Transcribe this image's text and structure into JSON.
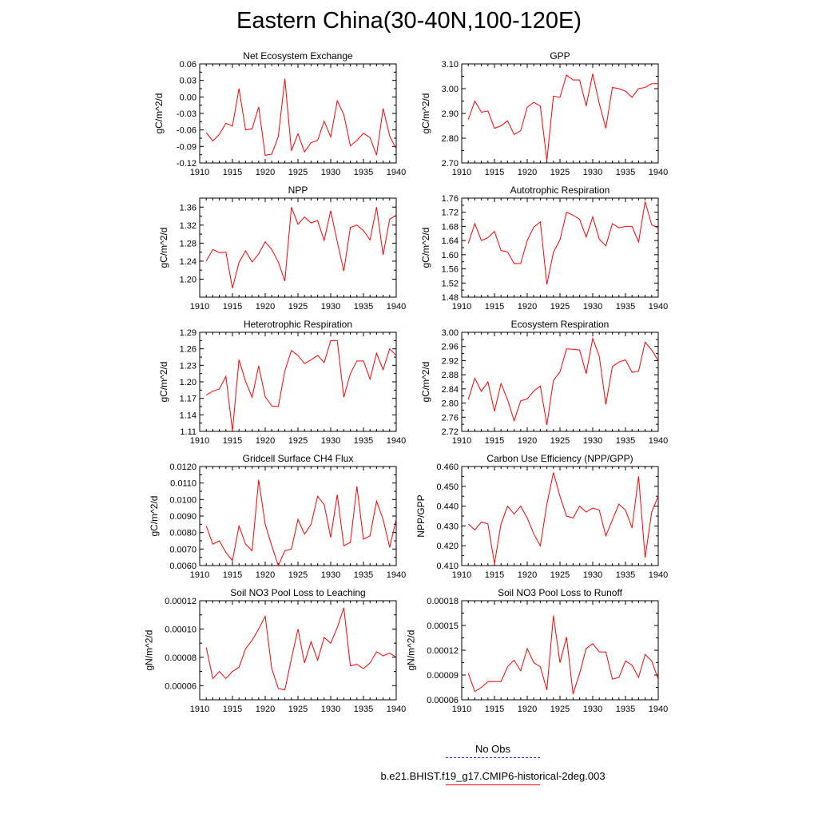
{
  "figure": {
    "title": "Eastern China(30-40N,100-120E)"
  },
  "legend": {
    "entries": [
      {
        "label": "No Obs",
        "color": "#3333cc",
        "style": "dashed"
      },
      {
        "label": "b.e21.BHIST.f19_g17.CMIP6-historical-2deg.003",
        "color": "#ff0000",
        "style": "solid"
      }
    ]
  },
  "chart_data": [
    {
      "type": "line",
      "title": "Net Ecosystem Exchange",
      "ylabel": "gC/m^2/d",
      "xlabel": "",
      "xlim": [
        1910,
        1940
      ],
      "ylim": [
        -0.12,
        0.06
      ],
      "xticks": [
        "1910",
        "1915",
        "1920",
        "1925",
        "1930",
        "1935",
        "1940"
      ],
      "yticks": [
        "-0.12",
        "-0.09",
        "-0.06",
        "-0.03",
        "0.00",
        "0.03",
        "0.06"
      ],
      "x": [
        1911,
        1912,
        1913,
        1914,
        1915,
        1916,
        1917,
        1918,
        1919,
        1920,
        1921,
        1922,
        1923,
        1924,
        1925,
        1926,
        1927,
        1928,
        1929,
        1930,
        1931,
        1932,
        1933,
        1934,
        1935,
        1936,
        1937,
        1938,
        1939,
        1940
      ],
      "series": [
        {
          "color": "#ff0000",
          "values": [
            -0.065,
            -0.08,
            -0.068,
            -0.048,
            -0.053,
            0.015,
            -0.06,
            -0.058,
            -0.018,
            -0.106,
            -0.104,
            -0.072,
            0.033,
            -0.098,
            -0.067,
            -0.1,
            -0.083,
            -0.079,
            -0.044,
            -0.073,
            -0.007,
            -0.032,
            -0.089,
            -0.079,
            -0.066,
            -0.074,
            -0.106,
            -0.021,
            -0.071,
            -0.094
          ]
        }
      ]
    },
    {
      "type": "line",
      "title": "GPP",
      "ylabel": "gC/m^2/d",
      "xlabel": "",
      "xlim": [
        1910,
        1940
      ],
      "ylim": [
        2.7,
        3.1
      ],
      "xticks": [
        "1910",
        "1915",
        "1920",
        "1925",
        "1930",
        "1935",
        "1940"
      ],
      "yticks": [
        "2.70",
        "2.80",
        "2.90",
        "3.00",
        "3.10"
      ],
      "x": [
        1911,
        1912,
        1913,
        1914,
        1915,
        1916,
        1917,
        1918,
        1919,
        1920,
        1921,
        1922,
        1923,
        1924,
        1925,
        1926,
        1927,
        1928,
        1929,
        1930,
        1931,
        1932,
        1933,
        1934,
        1935,
        1936,
        1937,
        1938,
        1939,
        1940
      ],
      "series": [
        {
          "color": "#ff0000",
          "values": [
            2.875,
            2.95,
            2.905,
            2.91,
            2.84,
            2.85,
            2.87,
            2.815,
            2.83,
            2.925,
            2.945,
            2.93,
            2.71,
            2.97,
            2.965,
            3.055,
            3.035,
            3.035,
            2.93,
            3.06,
            2.94,
            2.84,
            3.005,
            3.0,
            2.99,
            2.965,
            3.0,
            3.005,
            3.02,
            3.02
          ]
        }
      ]
    },
    {
      "type": "line",
      "title": "NPP",
      "ylabel": "gC/m^2/d",
      "xlabel": "",
      "xlim": [
        1910,
        1940
      ],
      "ylim": [
        1.16,
        1.38
      ],
      "xticks": [
        "1910",
        "1915",
        "1920",
        "1925",
        "1930",
        "1935",
        "1940"
      ],
      "yticks": [
        "1.20",
        "1.24",
        "1.28",
        "1.32",
        "1.36"
      ],
      "x": [
        1911,
        1912,
        1913,
        1914,
        1915,
        1916,
        1917,
        1918,
        1919,
        1920,
        1921,
        1922,
        1923,
        1924,
        1925,
        1926,
        1927,
        1928,
        1929,
        1930,
        1931,
        1932,
        1933,
        1934,
        1935,
        1936,
        1937,
        1938,
        1939,
        1940
      ],
      "series": [
        {
          "color": "#ff0000",
          "values": [
            1.24,
            1.266,
            1.259,
            1.26,
            1.18,
            1.237,
            1.263,
            1.238,
            1.256,
            1.283,
            1.266,
            1.238,
            1.196,
            1.36,
            1.322,
            1.338,
            1.325,
            1.33,
            1.286,
            1.352,
            1.283,
            1.218,
            1.315,
            1.32,
            1.308,
            1.287,
            1.36,
            1.254,
            1.333,
            1.342
          ]
        }
      ]
    },
    {
      "type": "line",
      "title": "Autotrophic Respiration",
      "ylabel": "gC/m^2/d",
      "xlabel": "",
      "xlim": [
        1910,
        1940
      ],
      "ylim": [
        1.48,
        1.76
      ],
      "xticks": [
        "1910",
        "1915",
        "1920",
        "1925",
        "1930",
        "1935",
        "1940"
      ],
      "yticks": [
        "1.48",
        "1.52",
        "1.56",
        "1.60",
        "1.64",
        "1.68",
        "1.72",
        "1.76"
      ],
      "x": [
        1911,
        1912,
        1913,
        1914,
        1915,
        1916,
        1917,
        1918,
        1919,
        1920,
        1921,
        1922,
        1923,
        1924,
        1925,
        1926,
        1927,
        1928,
        1929,
        1930,
        1931,
        1932,
        1933,
        1934,
        1935,
        1936,
        1937,
        1938,
        1939,
        1940
      ],
      "series": [
        {
          "color": "#ff0000",
          "values": [
            1.632,
            1.688,
            1.64,
            1.648,
            1.666,
            1.612,
            1.608,
            1.575,
            1.575,
            1.64,
            1.678,
            1.693,
            1.516,
            1.607,
            1.642,
            1.72,
            1.712,
            1.7,
            1.65,
            1.707,
            1.644,
            1.625,
            1.688,
            1.676,
            1.68,
            1.68,
            1.636,
            1.75,
            1.685,
            1.675
          ]
        }
      ]
    },
    {
      "type": "line",
      "title": "Heterotrophic Respiration",
      "ylabel": "gC/m^2/d",
      "xlabel": "",
      "xlim": [
        1910,
        1940
      ],
      "ylim": [
        1.11,
        1.29
      ],
      "xticks": [
        "1910",
        "1915",
        "1920",
        "1925",
        "1930",
        "1935",
        "1940"
      ],
      "yticks": [
        "1.11",
        "1.14",
        "1.17",
        "1.20",
        "1.23",
        "1.26",
        "1.29"
      ],
      "x": [
        1911,
        1912,
        1913,
        1914,
        1915,
        1916,
        1917,
        1918,
        1919,
        1920,
        1921,
        1922,
        1923,
        1924,
        1925,
        1926,
        1927,
        1928,
        1929,
        1930,
        1931,
        1932,
        1933,
        1934,
        1935,
        1936,
        1937,
        1938,
        1939,
        1940
      ],
      "series": [
        {
          "color": "#ff0000",
          "values": [
            1.176,
            1.183,
            1.187,
            1.21,
            1.111,
            1.24,
            1.201,
            1.172,
            1.229,
            1.173,
            1.156,
            1.155,
            1.22,
            1.257,
            1.248,
            1.233,
            1.24,
            1.248,
            1.235,
            1.275,
            1.275,
            1.172,
            1.215,
            1.238,
            1.238,
            1.205,
            1.252,
            1.222,
            1.26,
            1.248
          ]
        }
      ]
    },
    {
      "type": "line",
      "title": "Ecosystem Respiration",
      "ylabel": "gC/m^2/d",
      "xlabel": "",
      "xlim": [
        1910,
        1940
      ],
      "ylim": [
        2.72,
        3.0
      ],
      "xticks": [
        "1910",
        "1915",
        "1920",
        "1925",
        "1930",
        "1935",
        "1940"
      ],
      "yticks": [
        "2.72",
        "2.76",
        "2.80",
        "2.84",
        "2.88",
        "2.92",
        "2.96",
        "3.00"
      ],
      "x": [
        1911,
        1912,
        1913,
        1914,
        1915,
        1916,
        1917,
        1918,
        1919,
        1920,
        1921,
        1922,
        1923,
        1924,
        1925,
        1926,
        1927,
        1928,
        1929,
        1930,
        1931,
        1932,
        1933,
        1934,
        1935,
        1936,
        1937,
        1938,
        1939,
        1940
      ],
      "series": [
        {
          "color": "#ff0000",
          "values": [
            2.81,
            2.87,
            2.833,
            2.86,
            2.777,
            2.855,
            2.81,
            2.75,
            2.806,
            2.812,
            2.834,
            2.848,
            2.738,
            2.864,
            2.888,
            2.953,
            2.952,
            2.95,
            2.883,
            2.983,
            2.932,
            2.796,
            2.903,
            2.916,
            2.922,
            2.887,
            2.89,
            2.972,
            2.95,
            2.92
          ]
        }
      ]
    },
    {
      "type": "line",
      "title": "Gridcell Surface CH4 Flux",
      "ylabel": "gC/m^2/d",
      "xlabel": "",
      "xlim": [
        1910,
        1940
      ],
      "ylim": [
        0.006,
        0.012
      ],
      "xticks": [
        "1910",
        "1915",
        "1920",
        "1925",
        "1930",
        "1935",
        "1940"
      ],
      "yticks": [
        "0.0060",
        "0.0070",
        "0.0080",
        "0.0090",
        "0.0100",
        "0.0110",
        "0.0120"
      ],
      "x": [
        1911,
        1912,
        1913,
        1914,
        1915,
        1916,
        1917,
        1918,
        1919,
        1920,
        1921,
        1922,
        1923,
        1924,
        1925,
        1926,
        1927,
        1928,
        1929,
        1930,
        1931,
        1932,
        1933,
        1934,
        1935,
        1936,
        1937,
        1938,
        1939,
        1940
      ],
      "series": [
        {
          "color": "#ff0000",
          "values": [
            0.0084,
            0.0073,
            0.0075,
            0.0068,
            0.0063,
            0.0084,
            0.0073,
            0.0069,
            0.0112,
            0.0085,
            0.0072,
            0.006,
            0.0069,
            0.007,
            0.0088,
            0.0079,
            0.0085,
            0.0102,
            0.0097,
            0.0077,
            0.0103,
            0.0072,
            0.0074,
            0.0108,
            0.0076,
            0.0078,
            0.0099,
            0.0088,
            0.0071,
            0.0088
          ]
        }
      ]
    },
    {
      "type": "line",
      "title": "Carbon Use Efficiency (NPP/GPP)",
      "ylabel": "NPP/GPP",
      "xlabel": "",
      "xlim": [
        1910,
        1940
      ],
      "ylim": [
        0.41,
        0.46
      ],
      "xticks": [
        "1910",
        "1915",
        "1920",
        "1925",
        "1930",
        "1935",
        "1940"
      ],
      "yticks": [
        "0.410",
        "0.420",
        "0.430",
        "0.440",
        "0.450",
        "0.460"
      ],
      "x": [
        1911,
        1912,
        1913,
        1914,
        1915,
        1916,
        1917,
        1918,
        1919,
        1920,
        1921,
        1922,
        1923,
        1924,
        1925,
        1926,
        1927,
        1928,
        1929,
        1930,
        1931,
        1932,
        1933,
        1934,
        1935,
        1936,
        1937,
        1938,
        1939,
        1940
      ],
      "series": [
        {
          "color": "#ff0000",
          "values": [
            0.431,
            0.428,
            0.432,
            0.431,
            0.411,
            0.431,
            0.44,
            0.436,
            0.44,
            0.434,
            0.426,
            0.42,
            0.441,
            0.457,
            0.445,
            0.435,
            0.434,
            0.44,
            0.437,
            0.439,
            0.438,
            0.425,
            0.433,
            0.441,
            0.438,
            0.429,
            0.455,
            0.414,
            0.437,
            0.445
          ]
        }
      ]
    },
    {
      "type": "line",
      "title": "Soil NO3 Pool Loss to Leaching",
      "ylabel": "gN/m^2/d",
      "xlabel": "",
      "xlim": [
        1910,
        1940
      ],
      "ylim": [
        5e-05,
        0.00012
      ],
      "xticks": [
        "1910",
        "1915",
        "1920",
        "1925",
        "1930",
        "1935",
        "1940"
      ],
      "yticks": [
        "0.00006",
        "0.00008",
        "0.00010",
        "0.00012"
      ],
      "x": [
        1911,
        1912,
        1913,
        1914,
        1915,
        1916,
        1917,
        1918,
        1919,
        1920,
        1921,
        1922,
        1923,
        1924,
        1925,
        1926,
        1927,
        1928,
        1929,
        1930,
        1931,
        1932,
        1933,
        1934,
        1935,
        1936,
        1937,
        1938,
        1939,
        1940
      ],
      "series": [
        {
          "color": "#ff0000",
          "values": [
            8.7e-05,
            6.5e-05,
            7e-05,
            6.5e-05,
            7e-05,
            7.3e-05,
            8.6e-05,
            9.2e-05,
            0.0001,
            0.000109,
            7.2e-05,
            5.8e-05,
            5.7e-05,
            7.9e-05,
            0.0001,
            7.6e-05,
            9.1e-05,
            7.8e-05,
            9.4e-05,
            9e-05,
            0.000101,
            0.000115,
            7.4e-05,
            7.5e-05,
            7.2e-05,
            7.6e-05,
            8.4e-05,
            8.1e-05,
            8.3e-05,
            8e-05
          ]
        }
      ]
    },
    {
      "type": "line",
      "title": "Soil NO3 Pool Loss to Runoff",
      "ylabel": "gN/m^2/d",
      "xlabel": "",
      "xlim": [
        1910,
        1940
      ],
      "ylim": [
        6e-05,
        0.00018
      ],
      "xticks": [
        "1910",
        "1915",
        "1920",
        "1925",
        "1930",
        "1935",
        "1940"
      ],
      "yticks": [
        "0.00006",
        "0.00009",
        "0.00012",
        "0.00015",
        "0.00018"
      ],
      "x": [
        1911,
        1912,
        1913,
        1914,
        1915,
        1916,
        1917,
        1918,
        1919,
        1920,
        1921,
        1922,
        1923,
        1924,
        1925,
        1926,
        1927,
        1928,
        1929,
        1930,
        1931,
        1932,
        1933,
        1934,
        1935,
        1936,
        1937,
        1938,
        1939,
        1940
      ],
      "series": [
        {
          "color": "#ff0000",
          "values": [
            9.2e-05,
            7e-05,
            7.5e-05,
            8.2e-05,
            8.2e-05,
            8.2e-05,
            0.0001,
            0.000108,
            9.5e-05,
            0.000122,
            0.000105,
            0.0001,
            7.2e-05,
            0.000162,
            0.000105,
            0.000136,
            6.7e-05,
            9.2e-05,
            0.000122,
            0.000128,
            0.000118,
            0.000118,
            8.5e-05,
            8.7e-05,
            0.000107,
            0.000102,
            8.7e-05,
            0.000115,
            0.000107,
            8.5e-05
          ]
        }
      ]
    }
  ]
}
